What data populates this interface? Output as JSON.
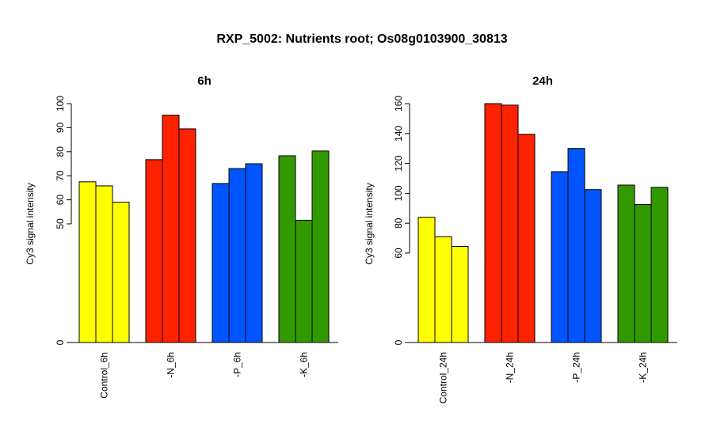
{
  "figure": {
    "title": "RXP_5002: Nutrients root; Os08g0103900_30813"
  },
  "chart_data": [
    {
      "type": "bar",
      "title": "6h",
      "ylabel": "Cy3 signal intensity",
      "categories": [
        "Control_6h",
        "-N_6h",
        "-P_6h",
        "-K_6h"
      ],
      "colors": [
        "#ffff00",
        "#ff2200",
        "#0055ff",
        "#339900"
      ],
      "values": [
        [
          67.5,
          65.8,
          59
        ],
        [
          76.7,
          95.2,
          89.5
        ],
        [
          66.8,
          73,
          75
        ],
        [
          78.3,
          51.5,
          80.3
        ]
      ],
      "ylim": [
        0,
        100
      ],
      "yticks": [
        0,
        50,
        60,
        70,
        80,
        90,
        100
      ],
      "scale_break": 50
    },
    {
      "type": "bar",
      "title": "24h",
      "ylabel": "Cy3 signal intensity",
      "categories": [
        "Control_24h",
        "-N_24h",
        "-P_24h",
        "-K_24h"
      ],
      "colors": [
        "#ffff00",
        "#ff2200",
        "#0055ff",
        "#339900"
      ],
      "values": [
        [
          84,
          71,
          64.5
        ],
        [
          160,
          159,
          139.5
        ],
        [
          114.5,
          130,
          102.5
        ],
        [
          105.5,
          92.5,
          104
        ]
      ],
      "ylim": [
        0,
        160
      ],
      "yticks": [
        0,
        60,
        80,
        100,
        120,
        140,
        160
      ],
      "scale_break": 60
    }
  ]
}
